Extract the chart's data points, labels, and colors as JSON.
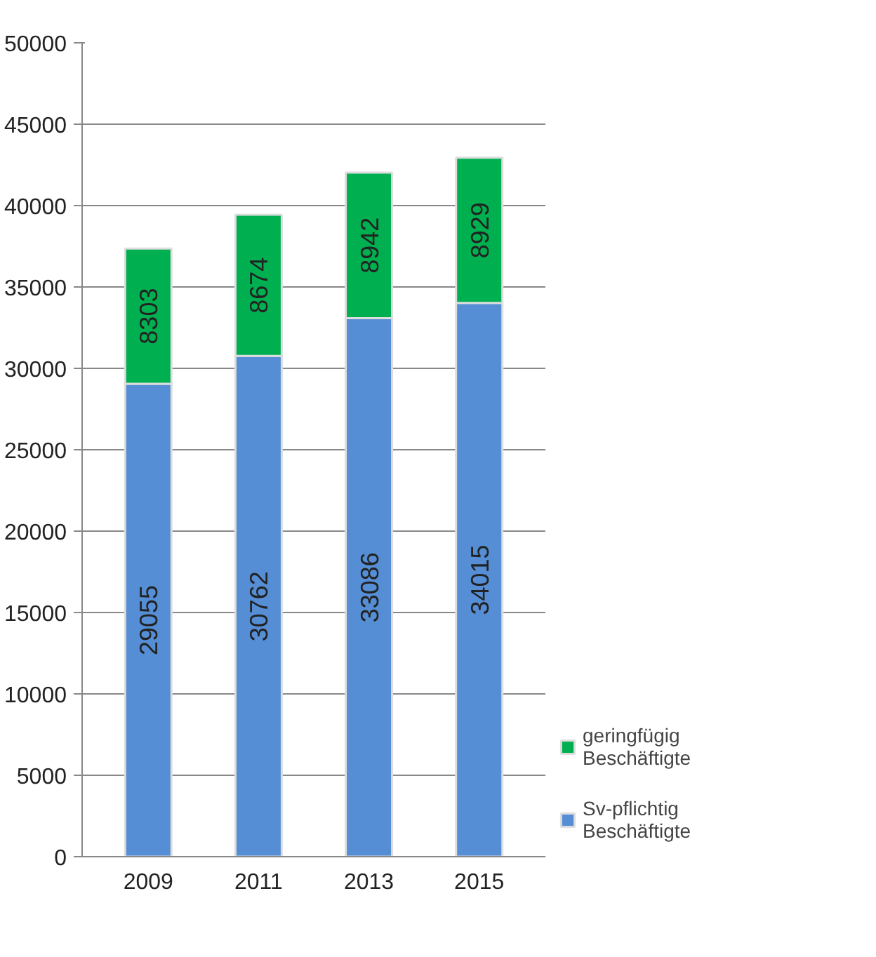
{
  "chart_data": {
    "type": "bar",
    "stacked": true,
    "categories": [
      "2009",
      "2011",
      "2013",
      "2015"
    ],
    "series": [
      {
        "name": "Sv-pflichtig Beschäftigte",
        "color": "#558ed5",
        "values": [
          29055,
          30762,
          33086,
          34015
        ]
      },
      {
        "name": "geringfügig Beschäftigte",
        "color": "#00b050",
        "values": [
          8303,
          8674,
          8942,
          8929
        ]
      }
    ],
    "ylim": [
      0,
      50000
    ],
    "yticks": [
      0,
      5000,
      10000,
      15000,
      20000,
      25000,
      30000,
      35000,
      40000,
      45000,
      50000
    ],
    "grid": "y",
    "legend": "bottom right",
    "data_labels": true
  }
}
